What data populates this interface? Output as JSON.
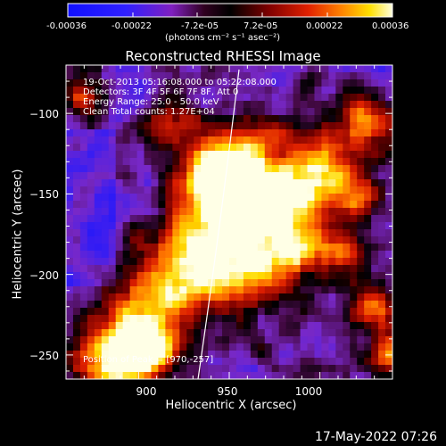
{
  "colorbar": {
    "ticks": [
      "-0.00036",
      "-0.00022",
      "-7.2e-05",
      "7.2e-05",
      "0.00022",
      "0.00036"
    ],
    "unit_label": "(photons cm⁻² s⁻¹ asec⁻²)",
    "range": [
      -0.00036,
      0.00036
    ]
  },
  "chart_data": {
    "type": "heatmap",
    "title": "Reconstructed RHESSI Image",
    "xlabel": "Heliocentric X (arcsec)",
    "ylabel": "Heliocentric Y (arcsec)",
    "xlim": [
      860,
      1040
    ],
    "ylim": [
      -265,
      -70
    ],
    "xticks": [
      900,
      950,
      1000
    ],
    "xtick_labels": [
      "900",
      "950",
      "1000"
    ],
    "yticks": [
      -100,
      -150,
      -200,
      -250
    ],
    "ytick_labels": [
      "−100",
      "−150",
      "−200",
      "−250"
    ],
    "annotations": [
      "19-Oct-2013 05:16:08.000 to 05:22:08.000",
      "Detectors: 3F 4F 5F 6F 7F 8F, Att 0",
      "Energy Range: 25.0 - 50.0 keV",
      "Clean    Total counts: 1.27E+04"
    ],
    "peak_label": "Position of Peak = [970,-257]",
    "limb_visible": true,
    "colormap": "red-temperature (blue=negative, black=zero, white=max)"
  },
  "datestamp": "17-May-2022 07:26"
}
